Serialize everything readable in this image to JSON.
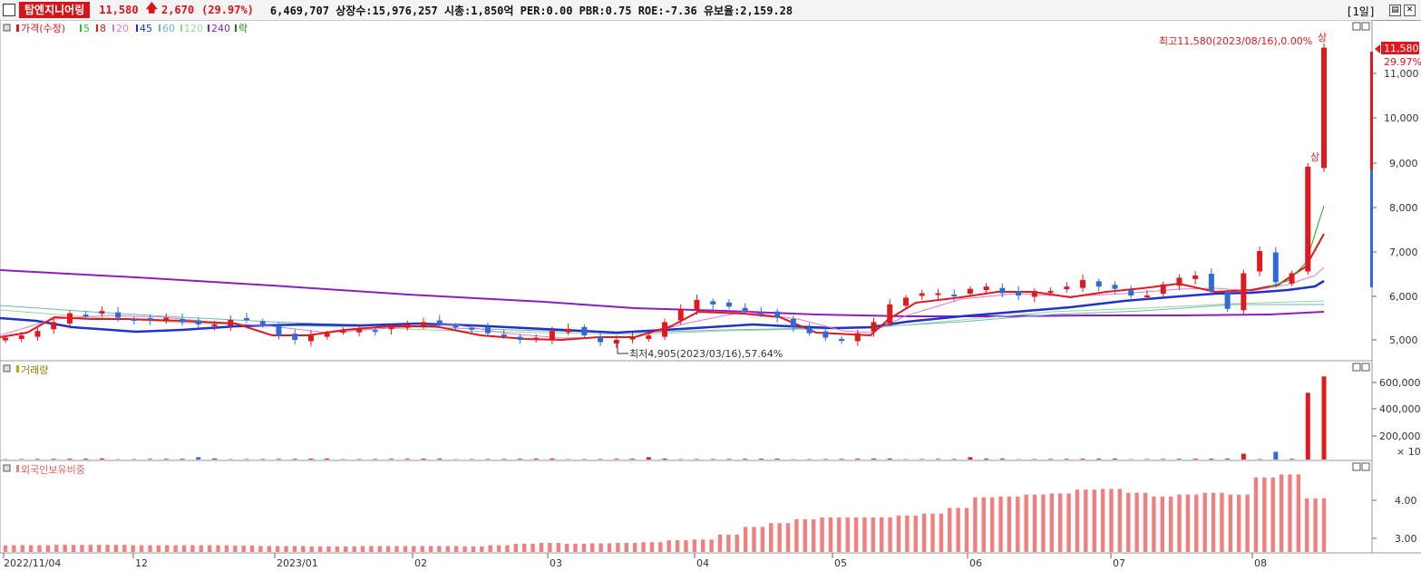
{
  "header": {
    "stock_name": "탑엔지니어링",
    "price": "11,580",
    "change": "2,670",
    "change_pct": "(29.97%)",
    "info": "6,469,707  상장수:15,976,257 시총:1,850억 PER:0.00 PBR:0.75 ROE:-7.36 유보율:2,159.28",
    "period": "[1일]",
    "restore_icon": "restore-icon",
    "close_icon": "close-icon"
  },
  "colors": {
    "up": "#e0191f",
    "down": "#2f6bd6",
    "ma5": "#27c227",
    "ma8": "#e0191f",
    "ma20": "#d97bd9",
    "ma45": "#1f32c9",
    "ma60": "#33a0a8",
    "ma120": "#9bd39b",
    "ma240": "#8a1fbd",
    "foreign": "#f08080"
  },
  "price_panel": {
    "legend": [
      {
        "label": "가격(수정)",
        "color": "#e0191f"
      },
      {
        "label": "5",
        "color": "#27c227"
      },
      {
        "label": "8",
        "color": "#e0191f"
      },
      {
        "label": "20",
        "color": "#d97bd9"
      },
      {
        "label": "45",
        "color": "#1f32c9"
      },
      {
        "label": "60",
        "color": "#6fb6c0"
      },
      {
        "label": "120",
        "color": "#9bd39b"
      },
      {
        "label": "240",
        "color": "#8a1fbd"
      },
      {
        "label": "락",
        "color": "#1f7a1f"
      }
    ],
    "high_note": "최고11,580(2023/08/16),0.00%",
    "high_marker": "상",
    "mid_marker": "상",
    "low_note": "최저4,905(2023/03/16),57.64%",
    "last_price_tag": "11,580",
    "last_pct_tag": "29.97%",
    "y_ticks": [
      "11,000",
      "10,000",
      "9,000",
      "8,000",
      "7,000",
      "6,000",
      "5,000"
    ]
  },
  "volume_panel": {
    "legend": "거래량",
    "y_ticks": [
      "600,000",
      "400,000",
      "200,000"
    ],
    "unit": "× 10"
  },
  "foreign_panel": {
    "legend": "외국인보유비중",
    "y_ticks": [
      "4.00",
      "3.00"
    ]
  },
  "x_axis": {
    "labels": [
      "2022/11/04",
      "12",
      "2023/01",
      "02",
      "03",
      "04",
      "05",
      "06",
      "07",
      "08"
    ]
  },
  "chart_data": [
    {
      "type": "candlestick",
      "title": "가격(수정)",
      "period": "daily",
      "dates": [
        "2022-11-04",
        "2023-08-16"
      ],
      "ylim": [
        4700,
        12000
      ],
      "high": {
        "value": 11580,
        "date": "2023-08-16"
      },
      "low": {
        "value": 4905,
        "date": "2023-03-16"
      },
      "close_series_approx": [
        5050,
        5100,
        5200,
        5400,
        5600,
        5550,
        5650,
        5500,
        5450,
        5450,
        5500,
        5400,
        5350,
        5350,
        5450,
        5450,
        5350,
        5100,
        5000,
        5100,
        5150,
        5200,
        5250,
        5200,
        5300,
        5350,
        5400,
        5350,
        5300,
        5250,
        5150,
        5100,
        5000,
        5050,
        5200,
        5250,
        5100,
        4950,
        5000,
        5050,
        5100,
        5400,
        5700,
        5900,
        5800,
        5750,
        5650,
        5600,
        5500,
        5300,
        5150,
        5050,
        5000,
        5150,
        5400,
        5800,
        5950,
        6050,
        6050,
        6000,
        6150,
        6200,
        6050,
        6000,
        6100,
        6100,
        6200,
        6350,
        6200,
        6150,
        6000,
        6000,
        6250,
        6400,
        6450,
        6100,
        5700,
        6500,
        7000,
        6300,
        6500,
        8900,
        11580
      ]
    },
    {
      "type": "bar",
      "title": "거래량",
      "unit": "× 10",
      "ylim": [
        0,
        650000
      ],
      "notable": [
        {
          "date": "2023-08-14",
          "value": 45000
        },
        {
          "date": "2023-08-15",
          "value": 520000
        },
        {
          "date": "2023-08-16",
          "value": 646970
        }
      ]
    },
    {
      "type": "bar",
      "title": "외국인보유비중",
      "ylim": [
        2.7,
        4.8
      ],
      "values_approx": [
        2.82,
        2.82,
        2.83,
        2.83,
        2.83,
        2.82,
        2.82,
        2.82,
        2.82,
        2.81,
        2.8,
        2.8,
        2.79,
        2.79,
        2.8,
        2.8,
        2.8,
        2.8,
        2.79,
        2.82,
        2.86,
        2.88,
        2.86,
        2.87,
        2.88,
        2.9,
        2.95,
        2.97,
        3.1,
        3.3,
        3.4,
        3.5,
        3.55,
        3.55,
        3.55,
        3.6,
        3.65,
        3.8,
        4.08,
        4.1,
        4.15,
        4.18,
        4.28,
        4.3,
        4.2,
        4.1,
        4.15,
        4.2,
        4.15,
        4.6,
        4.68,
        4.05
      ]
    }
  ]
}
